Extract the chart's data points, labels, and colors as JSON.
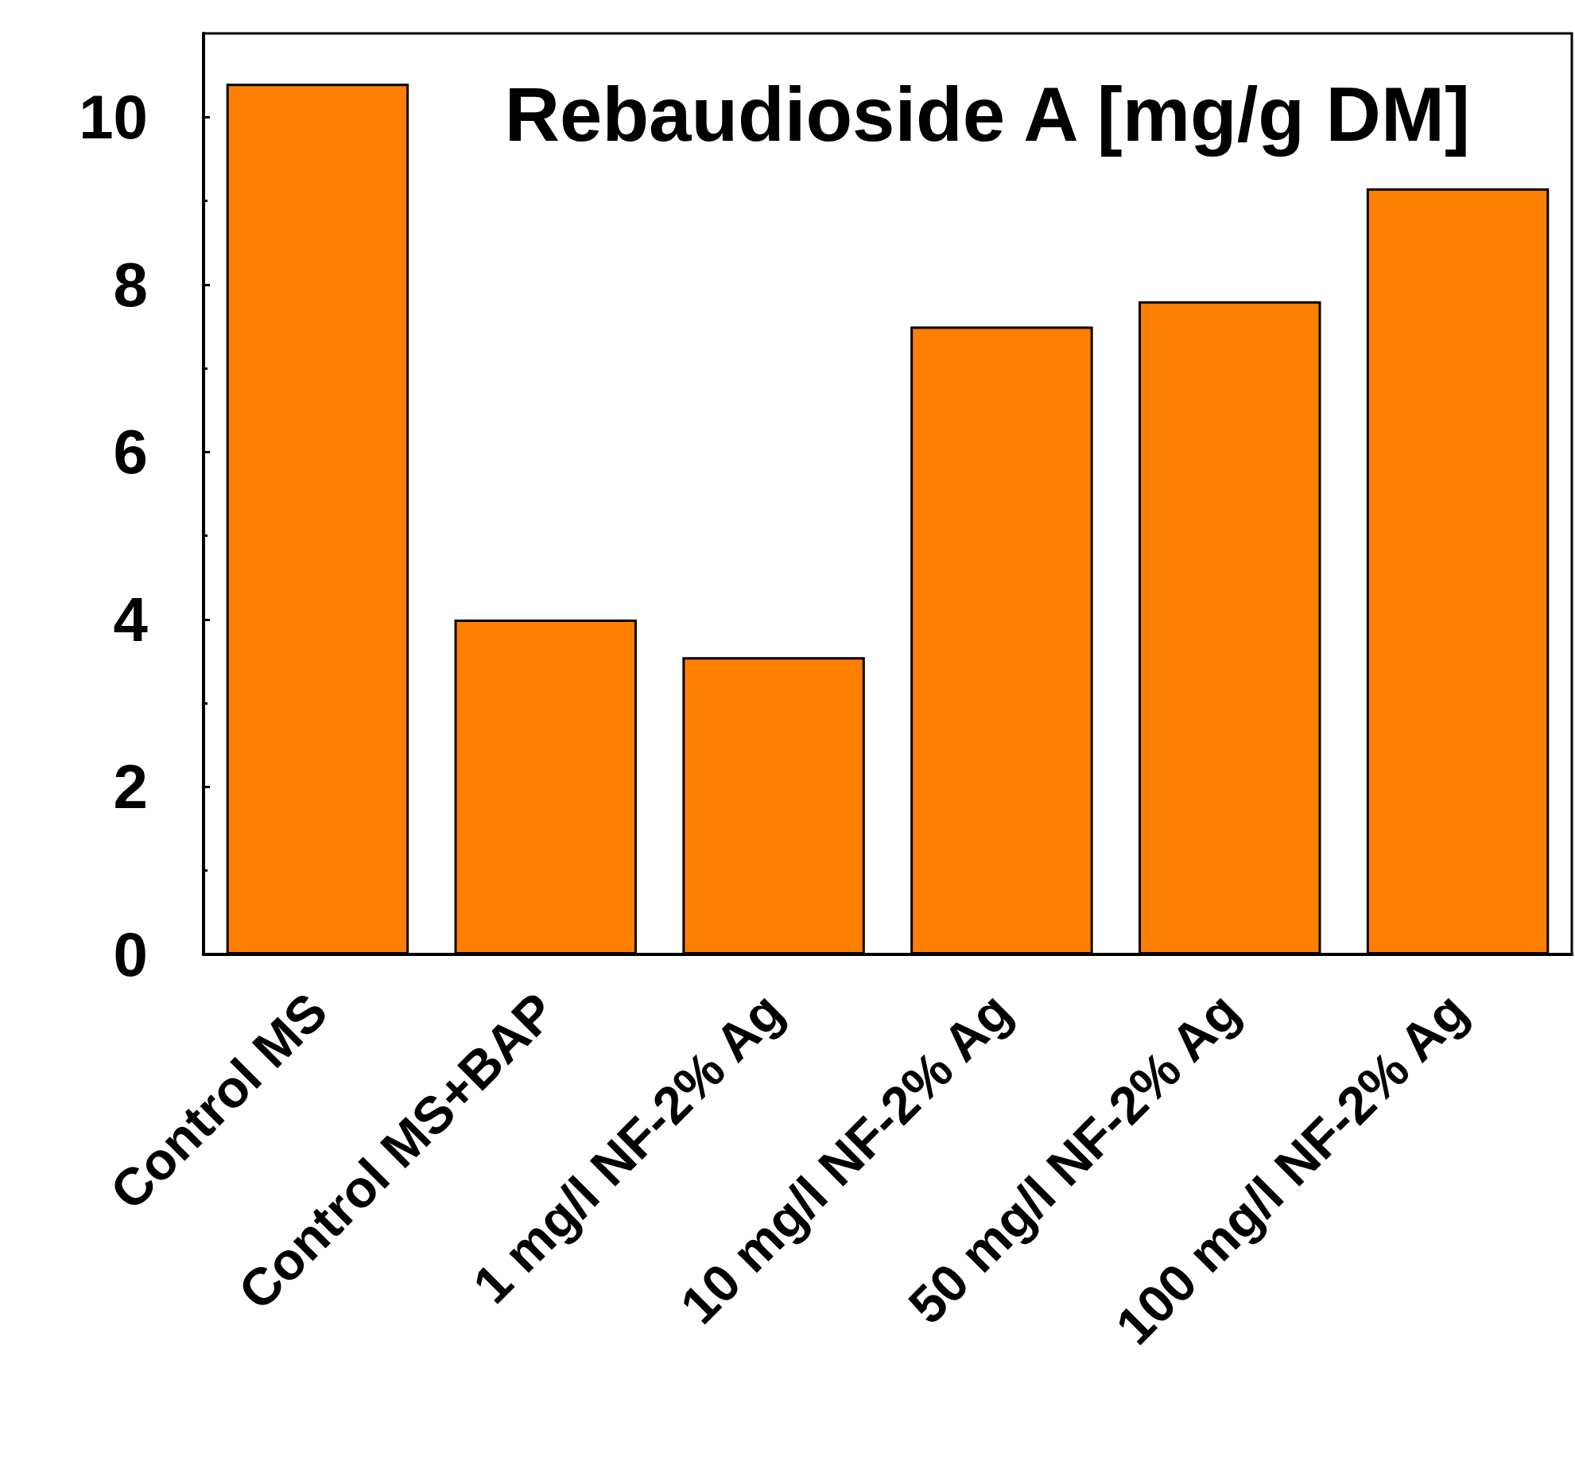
{
  "chart_data": {
    "type": "bar",
    "title": "Rebaudioside A [mg/g DM]",
    "categories": [
      "Control MS",
      "Control MS+BAP",
      "1 mg/l NF-2% Ag",
      "10 mg/l NF-2% Ag",
      "50 mg/l NF-2% Ag",
      "100 mg/l NF-2% Ag"
    ],
    "values": [
      10.4,
      4.0,
      3.55,
      7.5,
      7.8,
      9.15
    ],
    "color": "#ff7f00",
    "ylim": [
      0,
      11
    ],
    "yticks": [
      0,
      2,
      4,
      6,
      8,
      10
    ],
    "grid": false
  }
}
